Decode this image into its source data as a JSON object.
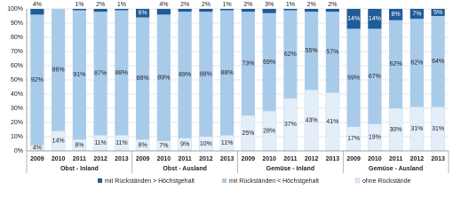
{
  "chart_data": {
    "type": "bar",
    "stacked": true,
    "categories": [
      "2009",
      "2010",
      "2011",
      "2012",
      "2013",
      "2009",
      "2010",
      "2011",
      "2012",
      "2013",
      "2009",
      "2010",
      "2011",
      "2012",
      "2013",
      "2009",
      "2010",
      "2011",
      "2012",
      "2013"
    ],
    "groups": [
      "Obst - Inland",
      "Obst - Ausland",
      "Gemüse - Inland",
      "Gemüse - Ausland"
    ],
    "series": [
      {
        "name": "ohne Rückstände",
        "color": "#e3eef9",
        "values": [
          4,
          14,
          8,
          11,
          11,
          8,
          7,
          9,
          10,
          11,
          25,
          28,
          37,
          43,
          41,
          17,
          19,
          30,
          31,
          31
        ],
        "value_labels": [
          "4%",
          "14%",
          "8%",
          "11%",
          "11%",
          "8%",
          "7%",
          "9%",
          "10%",
          "11%",
          "25%",
          "28%",
          "37%",
          "43%",
          "41%",
          "17%",
          "19%",
          "30%",
          "31%",
          "31%"
        ]
      },
      {
        "name": "mit Rückständen < Höchstgehalt",
        "color": "#a9cbea",
        "values": [
          92,
          86,
          91,
          87,
          88,
          86,
          89,
          89,
          88,
          88,
          73,
          69,
          62,
          55,
          57,
          69,
          67,
          62,
          62,
          64
        ],
        "value_labels": [
          "92%",
          "86%",
          "91%",
          "87%",
          "88%",
          "86%",
          "89%",
          "89%",
          "88%",
          "88%",
          "73%",
          "69%",
          "62%",
          "55%",
          "57%",
          "69%",
          "67%",
          "62%",
          "62%",
          "64%"
        ]
      },
      {
        "name": "mit Rückständen > Höchstgehalt",
        "color": "#1f5c99",
        "values": [
          4,
          0,
          1,
          2,
          1,
          6,
          4,
          2,
          2,
          1,
          2,
          3,
          1,
          2,
          2,
          14,
          14,
          8,
          7,
          5
        ],
        "value_labels": [
          "4%",
          null,
          "1%",
          "2%",
          "1%",
          "6%",
          "4%",
          "2%",
          "2%",
          "1%",
          "2%",
          "3%",
          "1%",
          "2%",
          "2%",
          "14%",
          "14%",
          "8%",
          "7%",
          "5%"
        ]
      }
    ],
    "ylim": [
      0,
      100
    ],
    "yticks": [
      {
        "value": 0,
        "label": "0%"
      },
      {
        "value": 10,
        "label": "10%"
      },
      {
        "value": 20,
        "label": "20%"
      },
      {
        "value": 30,
        "label": "30%"
      },
      {
        "value": 40,
        "label": "40%"
      },
      {
        "value": 50,
        "label": "50%"
      },
      {
        "value": 60,
        "label": "60%"
      },
      {
        "value": 70,
        "label": "70%"
      },
      {
        "value": 80,
        "label": "80%"
      },
      {
        "value": 90,
        "label": "90%"
      },
      {
        "value": 100,
        "label": "100%"
      }
    ],
    "grid": true
  }
}
